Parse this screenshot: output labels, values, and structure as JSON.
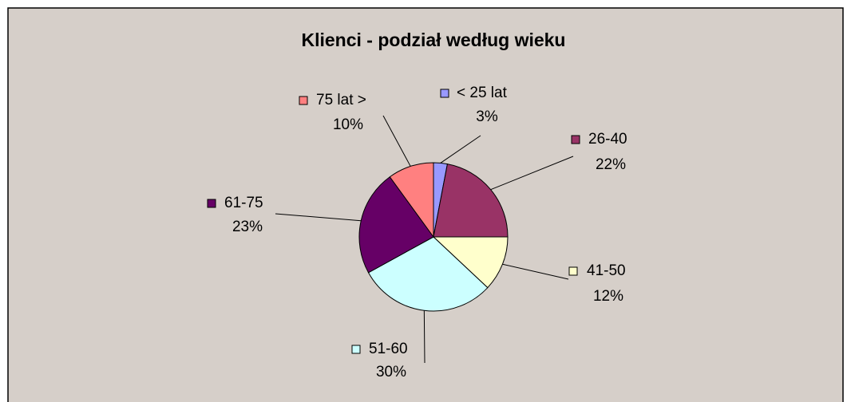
{
  "chart_data": {
    "type": "pie",
    "title": "Klienci - podział według wieku",
    "categories": [
      "< 25 lat",
      "26-40",
      "41-50",
      "51-60",
      "61-75",
      "75 lat >"
    ],
    "values": [
      3,
      22,
      12,
      30,
      23,
      10
    ],
    "value_labels": [
      "3%",
      "22%",
      "12%",
      "30%",
      "23%",
      "10%"
    ],
    "colors": [
      "#9999ff",
      "#993366",
      "#ffffcc",
      "#ccffff",
      "#660066",
      "#ff8080"
    ]
  }
}
